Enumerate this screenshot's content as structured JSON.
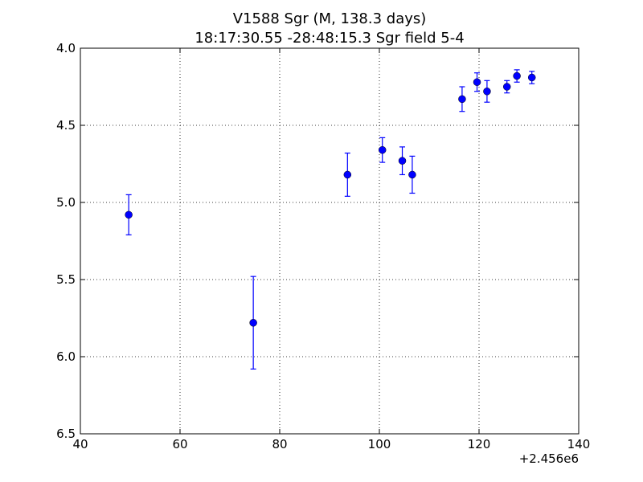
{
  "chart_data": {
    "type": "scatter",
    "title_line1": "V1588 Sgr  (M, 138.3 days)",
    "title_line2": "18:17:30.55 -28:48:15.3 Sgr field 5-4",
    "xlabel": "",
    "ylabel": "",
    "x_offset_label": "+2.456e6",
    "xlim": [
      40,
      140
    ],
    "ylim": [
      4.0,
      6.5
    ],
    "y_inverted": true,
    "grid": true,
    "xticks": [
      40,
      60,
      80,
      100,
      120,
      140
    ],
    "xtick_labels": [
      "40",
      "60",
      "80",
      "100",
      "120",
      "140"
    ],
    "yticks": [
      4.0,
      4.5,
      5.0,
      5.5,
      6.0,
      6.5
    ],
    "ytick_labels": [
      "4.0",
      "4.5",
      "5.0",
      "5.5",
      "6.0",
      "6.5"
    ],
    "series": [
      {
        "color": "#0000ff",
        "points": [
          {
            "x": 49.7,
            "y": 5.08,
            "err": 0.13
          },
          {
            "x": 74.7,
            "y": 5.78,
            "err": 0.3
          },
          {
            "x": 93.6,
            "y": 4.82,
            "err": 0.14
          },
          {
            "x": 100.6,
            "y": 4.66,
            "err": 0.08
          },
          {
            "x": 104.6,
            "y": 4.73,
            "err": 0.09
          },
          {
            "x": 106.6,
            "y": 4.82,
            "err": 0.12
          },
          {
            "x": 116.6,
            "y": 4.33,
            "err": 0.08
          },
          {
            "x": 119.6,
            "y": 4.22,
            "err": 0.06
          },
          {
            "x": 121.6,
            "y": 4.28,
            "err": 0.07
          },
          {
            "x": 125.6,
            "y": 4.25,
            "err": 0.04
          },
          {
            "x": 127.6,
            "y": 4.18,
            "err": 0.04
          },
          {
            "x": 130.6,
            "y": 4.19,
            "err": 0.04
          }
        ]
      }
    ]
  }
}
